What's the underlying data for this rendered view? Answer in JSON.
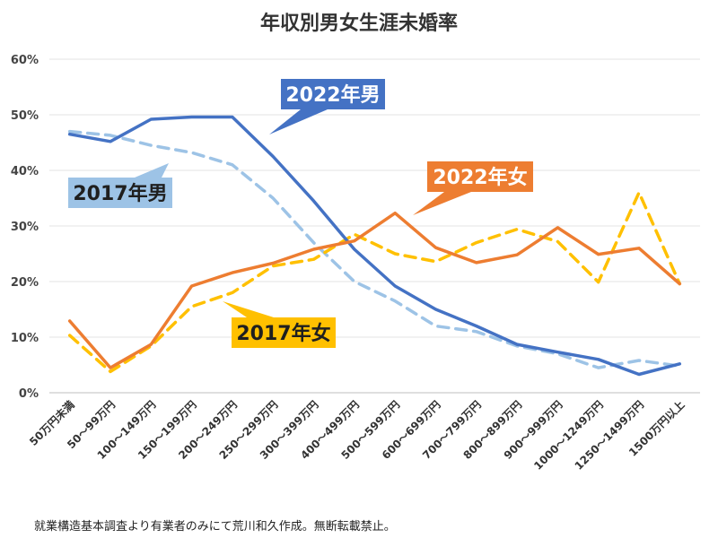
{
  "chart_data": {
    "type": "line",
    "title": "年収別男女生涯未婚率",
    "categories": [
      "50万円未満",
      "50～99万円",
      "100～149万円",
      "150～199万円",
      "200～249万円",
      "250～299万円",
      "300～399万円",
      "400～499万円",
      "500～599万円",
      "600～699万円",
      "700～799万円",
      "800～899万円",
      "900～999万円",
      "1000～1249万円",
      "1250～1499万円",
      "1500万円以上"
    ],
    "y_ticks": [
      "0%",
      "10%",
      "20%",
      "30%",
      "40%",
      "50%",
      "60%"
    ],
    "ylim": [
      0,
      60
    ],
    "y_unit": "%",
    "grid": true,
    "series": [
      {
        "name": "2022年男",
        "color": "#4472C4",
        "style": "solid",
        "values": [
          46.5,
          45.2,
          49.2,
          49.6,
          49.6,
          42.5,
          34.5,
          25.8,
          19.2,
          15.0,
          12.0,
          8.7,
          7.3,
          6.0,
          3.3,
          5.2
        ]
      },
      {
        "name": "2017年男",
        "color": "#9DC3E6",
        "style": "dashed",
        "values": [
          47.0,
          46.3,
          44.5,
          43.2,
          41.0,
          35.0,
          27.0,
          20.0,
          16.5,
          12.0,
          11.0,
          8.4,
          7.0,
          4.5,
          5.8,
          4.8
        ]
      },
      {
        "name": "2022年女",
        "color": "#ED7D31",
        "style": "solid",
        "values": [
          12.9,
          4.5,
          8.7,
          19.2,
          21.6,
          23.3,
          25.8,
          27.3,
          32.3,
          26.1,
          23.4,
          24.8,
          29.7,
          24.9,
          26.0,
          19.6
        ]
      },
      {
        "name": "2017年女",
        "color": "#FFC000",
        "style": "dashed",
        "values": [
          10.3,
          3.8,
          8.4,
          15.5,
          18.0,
          22.8,
          24.0,
          28.5,
          25.0,
          23.6,
          27.0,
          29.4,
          27.2,
          19.9,
          36.0,
          19.6
        ]
      }
    ],
    "annotations": [
      {
        "text": "2022年男",
        "series": "2022年男",
        "bg": "#4472C4",
        "color": "#ffffff"
      },
      {
        "text": "2017年男",
        "series": "2017年男",
        "bg": "#9DC3E6",
        "color": "#1F1F1F"
      },
      {
        "text": "2022年女",
        "series": "2022年女",
        "bg": "#ED7D31",
        "color": "#ffffff"
      },
      {
        "text": "2017年女",
        "series": "2017年女",
        "bg": "#FFC000",
        "color": "#1F1F1F"
      }
    ]
  },
  "source_note": "就業構造基本調査より有業者のみにて荒川和久作成。無断転載禁止。"
}
